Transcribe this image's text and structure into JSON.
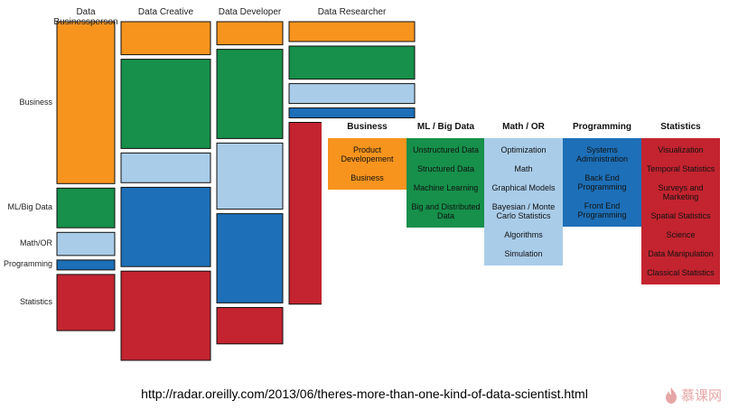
{
  "colors": {
    "business": "#f7941e",
    "ml_big_data": "#16904a",
    "math_or": "#a9cce9",
    "programming": "#1d6fb7",
    "statistics": "#c3242f"
  },
  "chart_data": {
    "type": "mosaic",
    "columns": [
      "Data Businessperson",
      "Data Creative",
      "Data Developer",
      "Data Researcher"
    ],
    "rows": [
      "Business",
      "ML/Big Data",
      "Math/OR",
      "Programming",
      "Statistics"
    ],
    "proportions": [
      [
        0.49,
        0.12,
        0.07,
        0.03,
        0.17
      ],
      [
        0.1,
        0.27,
        0.09,
        0.24,
        0.27
      ],
      [
        0.07,
        0.27,
        0.2,
        0.27,
        0.11
      ],
      [
        0.06,
        0.1,
        0.06,
        0.03,
        0.55
      ]
    ],
    "skill_panels": [
      {
        "title": "Business",
        "items": [
          "Product Developement",
          "Business"
        ]
      },
      {
        "title": "ML / Big Data",
        "items": [
          "Unstructured Data",
          "Structured Data",
          "Machine Learning",
          "Big and Distributed Data"
        ]
      },
      {
        "title": "Math / OR",
        "items": [
          "Optimization",
          "Math",
          "Graphical Models",
          "Bayesian / Monte Carlo Statistics",
          "Algorithms",
          "Simulation"
        ]
      },
      {
        "title": "Programming",
        "items": [
          "Systems Administration",
          "Back End Programming",
          "Front End Programming"
        ]
      },
      {
        "title": "Statistics",
        "items": [
          "Visualization",
          "Temporal Statistics",
          "Surveys and Marketing",
          "Spatial Statistics",
          "Science",
          "Data Manipulation",
          "Classical Statistics"
        ]
      }
    ]
  },
  "url": "http://radar.oreilly.com/2013/06/theres-more-than-one-kind-of-data-scientist.html",
  "logo": {
    "icon": "flame-icon",
    "text": "慕课网"
  }
}
